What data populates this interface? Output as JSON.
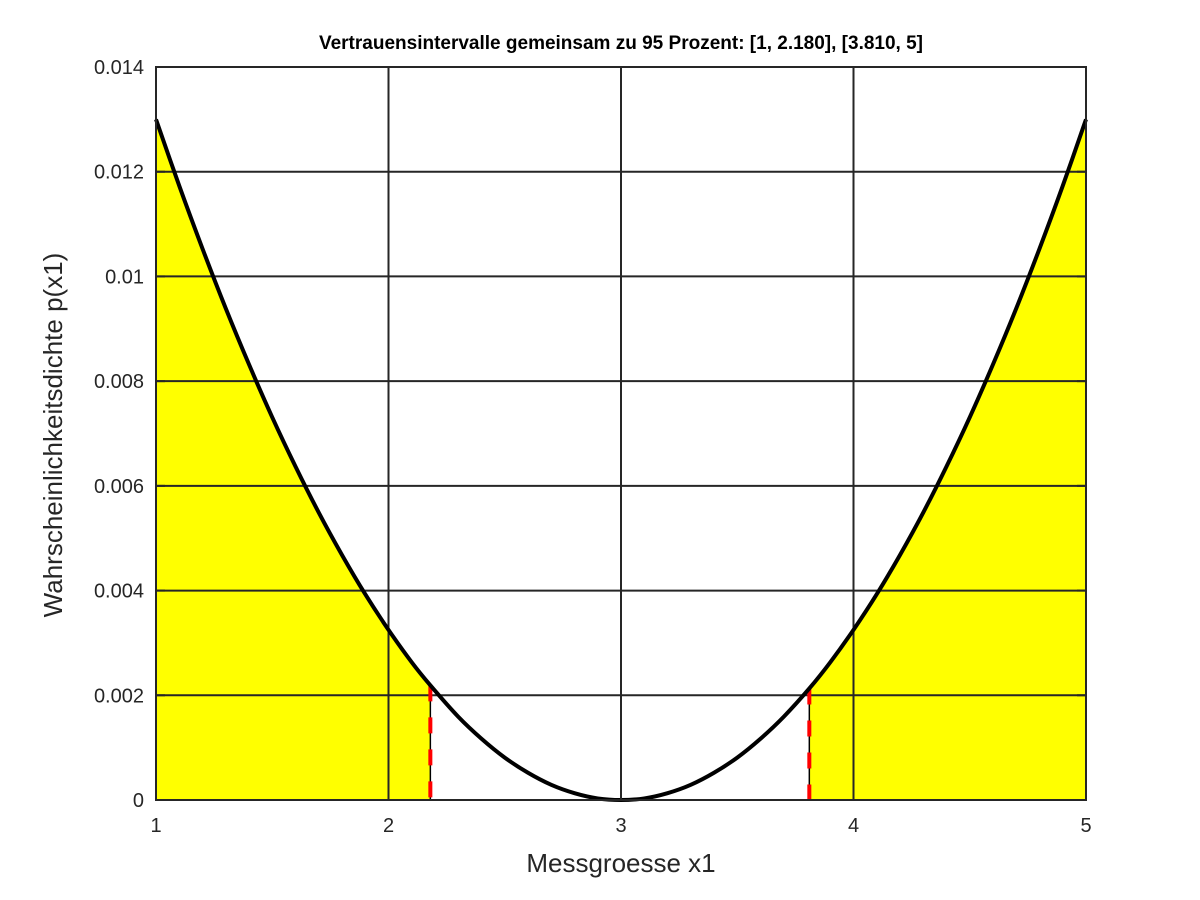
{
  "chart_data": {
    "type": "area",
    "title": "Vertrauensintervalle gemeinsam zu 95 Prozent: [1, 2.180], [3.810, 5]",
    "xlabel": "Messgroesse x1",
    "ylabel": "Wahrscheinlichkeitsdichte p(x1)",
    "xlim": [
      1,
      5
    ],
    "ylim": [
      0,
      0.014
    ],
    "x_ticks": [
      1,
      2,
      3,
      4,
      5
    ],
    "x_tick_labels": [
      "1",
      "2",
      "3",
      "4",
      "5"
    ],
    "y_ticks": [
      0,
      0.002,
      0.004,
      0.006,
      0.008,
      0.01,
      0.012,
      0.014
    ],
    "y_tick_labels": [
      "0",
      "0.002",
      "0.004",
      "0.006",
      "0.008",
      "0.01",
      "0.012",
      "0.014"
    ],
    "grid": true,
    "series": [
      {
        "x": [
          1.0,
          1.1,
          1.2,
          1.3,
          1.4,
          1.5,
          1.6,
          1.7,
          1.8,
          1.9,
          2.0,
          2.1,
          2.18,
          2.3,
          2.4,
          2.5,
          2.6,
          2.7,
          2.8,
          2.9,
          3.0,
          3.1,
          3.2,
          3.3,
          3.4,
          3.5,
          3.6,
          3.7,
          3.81,
          3.9,
          4.0,
          4.1,
          4.2,
          4.3,
          4.4,
          4.5,
          4.6,
          4.7,
          4.8,
          4.9,
          5.0
        ],
        "y": [
          0.013,
          0.01173,
          0.01053,
          0.00939,
          0.00832,
          0.00731,
          0.00637,
          0.00549,
          0.00468,
          0.00393,
          0.00325,
          0.00263,
          0.00219,
          0.00159,
          0.00117,
          0.00081,
          0.00052,
          0.00029,
          0.00013,
          3e-05,
          0.0,
          3e-05,
          0.00013,
          0.00029,
          0.00052,
          0.00081,
          0.00117,
          0.00159,
          0.00213,
          0.00263,
          0.00325,
          0.00393,
          0.00468,
          0.00549,
          0.00637,
          0.00731,
          0.00832,
          0.00939,
          0.01053,
          0.01173,
          0.013
        ],
        "color": "#000000"
      }
    ],
    "shaded_regions": [
      {
        "from": 1,
        "to": 2.18,
        "color": "#ffff00"
      },
      {
        "from": 3.81,
        "to": 5,
        "color": "#ffff00"
      }
    ],
    "markers": [
      {
        "x": 2.18,
        "color": "#ff0000",
        "style": "dashed"
      },
      {
        "x": 3.81,
        "color": "#ff0000",
        "style": "dashed"
      }
    ]
  }
}
